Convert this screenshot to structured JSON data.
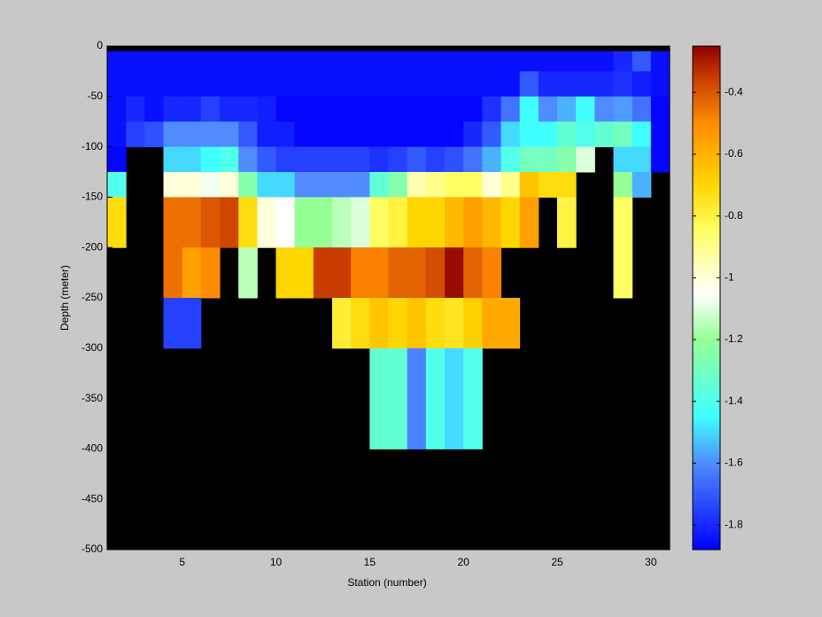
{
  "chart_data": {
    "type": "heatmap",
    "xlabel": "Station (number)",
    "ylabel": "Depth (meter)",
    "xlim": [
      1,
      31
    ],
    "ylim": [
      -500,
      0
    ],
    "xticks": [
      5,
      10,
      15,
      20,
      25,
      30
    ],
    "yticks": [
      0,
      -50,
      -100,
      -150,
      -200,
      -250,
      -300,
      -350,
      -400,
      -450,
      -500
    ],
    "x_edges": [
      1,
      2,
      3,
      4,
      5,
      6,
      7,
      8,
      9,
      10,
      11,
      12,
      13,
      14,
      15,
      16,
      17,
      18,
      19,
      20,
      21,
      22,
      23,
      24,
      25,
      26,
      27,
      28,
      29,
      30,
      31
    ],
    "y_edges": [
      0,
      -5,
      -25,
      -50,
      -75,
      -100,
      -125,
      -150,
      -200,
      -250,
      -300,
      -400
    ],
    "nan_color": "#000000",
    "clim": [
      -1.88,
      -0.25
    ],
    "cticks": [
      -1.8,
      -1.6,
      -1.4,
      -1.2,
      -1,
      -0.8,
      -0.6,
      -0.4
    ],
    "colormap": [
      {
        "value": -1.88,
        "color": "#0000ff"
      },
      {
        "value": -1.6,
        "color": "#508cff"
      },
      {
        "value": -1.45,
        "color": "#40ffff"
      },
      {
        "value": -1.2,
        "color": "#96ff96"
      },
      {
        "value": -1.05,
        "color": "#ffffff"
      },
      {
        "value": -0.85,
        "color": "#ffff64"
      },
      {
        "value": -0.7,
        "color": "#ffd700"
      },
      {
        "value": -0.5,
        "color": "#ff8c00"
      },
      {
        "value": -0.35,
        "color": "#c83c00"
      },
      {
        "value": -0.25,
        "color": "#8c0000"
      }
    ],
    "z": [
      [
        null,
        null,
        null,
        null,
        null,
        null,
        null,
        null,
        null,
        null,
        null,
        null,
        null,
        null,
        null,
        null,
        null,
        null,
        null,
        null,
        null,
        null,
        null,
        null,
        null,
        null,
        null,
        null,
        null,
        null
      ],
      [
        -1.85,
        -1.85,
        -1.85,
        -1.85,
        -1.85,
        -1.85,
        -1.85,
        -1.85,
        -1.85,
        -1.85,
        -1.85,
        -1.85,
        -1.85,
        -1.85,
        -1.85,
        -1.85,
        -1.85,
        -1.85,
        -1.85,
        -1.85,
        -1.85,
        -1.85,
        -1.85,
        -1.85,
        -1.85,
        -1.85,
        -1.85,
        -1.8,
        -1.7,
        -1.85
      ],
      [
        -1.85,
        -1.85,
        -1.85,
        -1.85,
        -1.85,
        -1.85,
        -1.85,
        -1.85,
        -1.85,
        -1.85,
        -1.85,
        -1.85,
        -1.85,
        -1.85,
        -1.85,
        -1.85,
        -1.85,
        -1.85,
        -1.85,
        -1.85,
        -1.85,
        -1.85,
        -1.7,
        -1.8,
        -1.8,
        -1.8,
        -1.8,
        -1.78,
        -1.82,
        -1.85
      ],
      [
        -1.85,
        -1.8,
        -1.85,
        -1.8,
        -1.8,
        -1.75,
        -1.8,
        -1.8,
        -1.82,
        -1.87,
        -1.87,
        -1.87,
        -1.87,
        -1.87,
        -1.87,
        -1.87,
        -1.87,
        -1.87,
        -1.87,
        -1.87,
        -1.78,
        -1.65,
        -1.45,
        -1.6,
        -1.55,
        -1.45,
        -1.6,
        -1.58,
        -1.65,
        -1.87
      ],
      [
        -1.85,
        -1.75,
        -1.72,
        -1.6,
        -1.6,
        -1.6,
        -1.6,
        -1.7,
        -1.82,
        -1.82,
        -1.87,
        -1.87,
        -1.87,
        -1.87,
        -1.87,
        -1.87,
        -1.87,
        -1.87,
        -1.87,
        -1.8,
        -1.7,
        -1.5,
        -1.45,
        -1.45,
        -1.35,
        -1.4,
        -1.35,
        -1.3,
        -1.45,
        -1.87
      ],
      [
        -1.87,
        null,
        null,
        -1.5,
        -1.5,
        -1.45,
        -1.4,
        -1.6,
        -1.7,
        -1.75,
        -1.75,
        -1.75,
        -1.75,
        -1.75,
        -1.78,
        -1.75,
        -1.7,
        -1.75,
        -1.72,
        -1.65,
        -1.55,
        -1.4,
        -1.3,
        -1.3,
        -1.25,
        -1.1,
        null,
        -1.5,
        -1.5,
        -1.87
      ],
      [
        -1.4,
        null,
        null,
        -1,
        -1,
        -1.07,
        -1,
        -1.25,
        -1.5,
        -1.5,
        -1.6,
        -1.6,
        -1.6,
        -1.6,
        -1.35,
        -1.25,
        -0.95,
        -0.9,
        -0.85,
        -0.85,
        -1,
        -0.9,
        -0.65,
        -0.72,
        -0.72,
        null,
        null,
        -1.2,
        -1.55,
        null
      ],
      [
        -0.72,
        null,
        null,
        -0.45,
        -0.45,
        -0.4,
        -0.37,
        -0.72,
        -1,
        -1.05,
        -1.2,
        -1.2,
        -1.15,
        -1.1,
        -0.85,
        -0.8,
        -0.7,
        -0.7,
        -0.62,
        -0.55,
        -0.62,
        -0.7,
        -0.55,
        null,
        -0.8,
        null,
        null,
        -0.85,
        null,
        null
      ],
      [
        null,
        null,
        null,
        -0.45,
        -0.55,
        -0.5,
        null,
        -1.15,
        null,
        -0.7,
        -0.7,
        -0.35,
        -0.35,
        -0.48,
        -0.48,
        -0.42,
        -0.42,
        -0.38,
        -0.27,
        -0.42,
        -0.48,
        null,
        null,
        null,
        null,
        null,
        null,
        -0.85,
        null,
        null
      ],
      [
        null,
        null,
        null,
        -1.75,
        -1.75,
        null,
        null,
        null,
        null,
        null,
        null,
        null,
        -0.78,
        -0.72,
        -0.65,
        -0.7,
        -0.65,
        -0.72,
        -0.75,
        -0.68,
        -0.58,
        -0.58,
        null,
        null,
        null,
        null,
        null,
        null,
        null,
        null
      ],
      [
        null,
        null,
        null,
        null,
        null,
        null,
        null,
        null,
        null,
        null,
        null,
        null,
        null,
        null,
        -1.35,
        -1.35,
        -1.62,
        -1.4,
        -1.5,
        -1.4,
        null,
        null,
        null,
        null,
        null,
        null,
        null,
        null,
        null,
        null
      ]
    ]
  }
}
